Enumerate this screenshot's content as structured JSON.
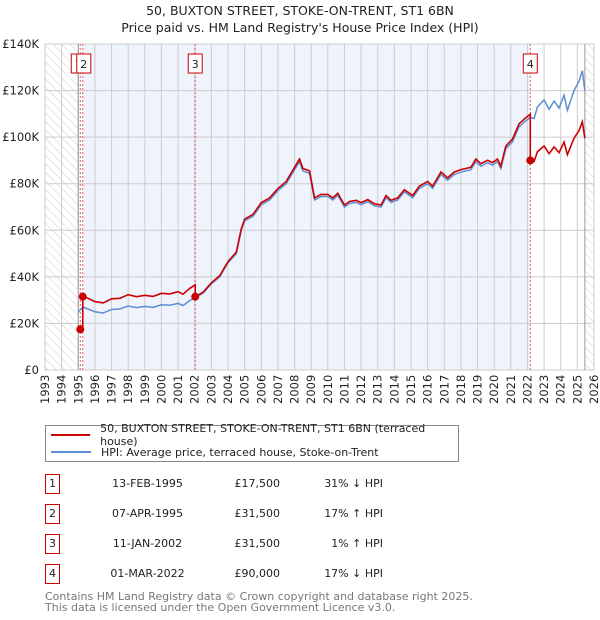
{
  "chart_data": {
    "type": "line",
    "title": [
      "50, BUXTON STREET, STOKE-ON-TRENT, ST1 6BN",
      "Price paid vs. HM Land Registry's House Price Index (HPI)"
    ],
    "xlim": [
      1993,
      2026
    ],
    "ylim": [
      0,
      140000
    ],
    "x_ticks": [
      "1993",
      "1994",
      "1995",
      "1996",
      "1997",
      "1998",
      "1999",
      "2000",
      "2001",
      "2002",
      "2003",
      "2004",
      "2005",
      "2006",
      "2007",
      "2008",
      "2009",
      "2010",
      "2011",
      "2012",
      "2013",
      "2014",
      "2015",
      "2016",
      "2017",
      "2018",
      "2019",
      "2020",
      "2021",
      "2022",
      "2023",
      "2024",
      "2025",
      "2026"
    ],
    "y_ticks": [
      {
        "v": 0,
        "label": "£0"
      },
      {
        "v": 20000,
        "label": "£20K"
      },
      {
        "v": 40000,
        "label": "£40K"
      },
      {
        "v": 60000,
        "label": "£60K"
      },
      {
        "v": 80000,
        "label": "£80K"
      },
      {
        "v": 100000,
        "label": "£100K"
      },
      {
        "v": 120000,
        "label": "£120K"
      },
      {
        "v": 140000,
        "label": "£140K"
      }
    ],
    "grid": true,
    "data_range": [
      1995.0,
      2025.45
    ],
    "colors": {
      "property": "#cc0000",
      "hpi": "#5b8fd4",
      "shade": "#eef3fc"
    },
    "hpi_series": [
      [
        1995.0,
        25000
      ],
      [
        1995.3,
        27000
      ],
      [
        1996,
        25000
      ],
      [
        1996.5,
        24500
      ],
      [
        1997,
        26000
      ],
      [
        1997.5,
        26200
      ],
      [
        1998,
        27500
      ],
      [
        1998.5,
        26800
      ],
      [
        1999,
        27300
      ],
      [
        1999.5,
        26900
      ],
      [
        2000,
        28000
      ],
      [
        2000.5,
        27800
      ],
      [
        2001,
        28600
      ],
      [
        2001.3,
        27700
      ],
      [
        2001.7,
        29800
      ],
      [
        2002.0,
        31000
      ],
      [
        2002.5,
        33000
      ],
      [
        2003,
        37000
      ],
      [
        2003.5,
        40000
      ],
      [
        2004,
        46000
      ],
      [
        2004.5,
        50000
      ],
      [
        2004.8,
        60000
      ],
      [
        2005,
        64000
      ],
      [
        2005.5,
        66000
      ],
      [
        2006,
        71000
      ],
      [
        2006.5,
        73000
      ],
      [
        2007,
        77000
      ],
      [
        2007.5,
        80000
      ],
      [
        2008,
        86000
      ],
      [
        2008.3,
        89500
      ],
      [
        2008.5,
        85500
      ],
      [
        2008.9,
        84500
      ],
      [
        2009.2,
        73000
      ],
      [
        2009.6,
        74500
      ],
      [
        2010,
        74500
      ],
      [
        2010.3,
        73000
      ],
      [
        2010.6,
        75000
      ],
      [
        2011,
        70000
      ],
      [
        2011.3,
        71500
      ],
      [
        2011.7,
        72000
      ],
      [
        2012,
        71000
      ],
      [
        2012.4,
        72300
      ],
      [
        2012.8,
        70500
      ],
      [
        2013.2,
        70000
      ],
      [
        2013.5,
        74000
      ],
      [
        2013.8,
        72000
      ],
      [
        2014.2,
        73000
      ],
      [
        2014.6,
        76500
      ],
      [
        2015.1,
        74000
      ],
      [
        2015.5,
        78000
      ],
      [
        2016,
        80000
      ],
      [
        2016.3,
        78000
      ],
      [
        2016.8,
        84000
      ],
      [
        2017.2,
        81500
      ],
      [
        2017.6,
        84000
      ],
      [
        2018,
        85000
      ],
      [
        2018.6,
        86000
      ],
      [
        2018.9,
        89500
      ],
      [
        2019.2,
        87500
      ],
      [
        2019.6,
        89000
      ],
      [
        2019.9,
        88000
      ],
      [
        2020.2,
        89500
      ],
      [
        2020.4,
        86500
      ],
      [
        2020.7,
        95000
      ],
      [
        2021.1,
        98000
      ],
      [
        2021.5,
        104500
      ],
      [
        2021.9,
        107000
      ],
      [
        2022.17,
        108500
      ],
      [
        2022.4,
        108000
      ],
      [
        2022.6,
        113000
      ],
      [
        2023,
        116000
      ],
      [
        2023.3,
        112000
      ],
      [
        2023.6,
        115500
      ],
      [
        2023.9,
        112500
      ],
      [
        2024.2,
        118000
      ],
      [
        2024.4,
        111500
      ],
      [
        2024.8,
        120000
      ],
      [
        2025.1,
        124000
      ],
      [
        2025.3,
        128500
      ],
      [
        2025.45,
        120000
      ]
    ],
    "sales": [
      {
        "id": "1",
        "x": 1995.12,
        "price": 17500
      },
      {
        "id": "2",
        "x": 1995.27,
        "price": 31500
      },
      {
        "id": "3",
        "x": 2002.03,
        "price": 31500
      },
      {
        "id": "4",
        "x": 2022.17,
        "price": 90000
      }
    ],
    "legend": {
      "position": "bottom",
      "property": "50, BUXTON STREET, STOKE-ON-TRENT, ST1 6BN (terraced house)",
      "hpi": "HPI: Average price, terraced house, Stoke-on-Trent"
    }
  },
  "table": [
    {
      "num": "1",
      "date": "13-FEB-1995",
      "price": "£17,500",
      "hpi": "31% ↓ HPI"
    },
    {
      "num": "2",
      "date": "07-APR-1995",
      "price": "£31,500",
      "hpi": "17% ↑ HPI"
    },
    {
      "num": "3",
      "date": "11-JAN-2002",
      "price": "£31,500",
      "hpi": "1% ↑ HPI"
    },
    {
      "num": "4",
      "date": "01-MAR-2022",
      "price": "£90,000",
      "hpi": "17% ↓ HPI"
    }
  ],
  "footer": [
    "Contains HM Land Registry data © Crown copyright and database right 2025.",
    "This data is licensed under the Open Government Licence v3.0."
  ]
}
